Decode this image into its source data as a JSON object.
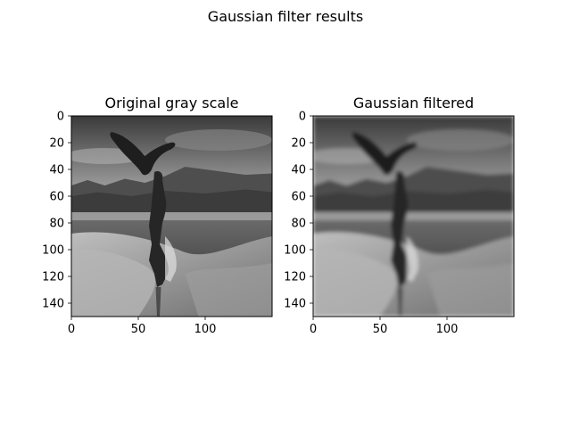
{
  "figure": {
    "title": "Gaussian filter results"
  },
  "chart_data": [
    {
      "type": "heatmap",
      "title": "Original gray scale",
      "colormap": "gray",
      "xlim": [
        0,
        150
      ],
      "ylim": [
        150,
        0
      ],
      "x_ticks": [
        0,
        50,
        100
      ],
      "y_ticks": [
        0,
        20,
        40,
        60,
        80,
        100,
        120,
        140
      ],
      "image_size": [
        150,
        150
      ],
      "blurred": false
    },
    {
      "type": "heatmap",
      "title": "Gaussian filtered",
      "colormap": "gray",
      "xlim": [
        0,
        150
      ],
      "ylim": [
        150,
        0
      ],
      "x_ticks": [
        0,
        50,
        100
      ],
      "y_ticks": [
        0,
        20,
        40,
        60,
        80,
        100,
        120,
        140
      ],
      "image_size": [
        150,
        150
      ],
      "blurred": true
    }
  ]
}
